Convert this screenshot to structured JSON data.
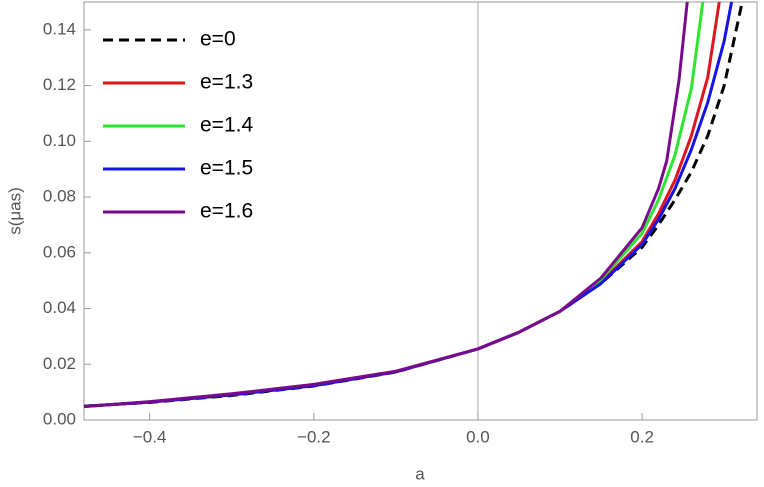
{
  "chart_data": {
    "type": "line",
    "x_label": "a",
    "y_label": "s(μas)",
    "xlim": [
      -0.48,
      0.34
    ],
    "ylim": [
      0,
      0.15
    ],
    "xticks": [
      {
        "value": -0.4,
        "label": "−0.4"
      },
      {
        "value": -0.2,
        "label": "−0.2"
      },
      {
        "value": 0,
        "label": "0.0"
      },
      {
        "value": 0.2,
        "label": "0.2"
      }
    ],
    "yticks": [
      {
        "value": 0,
        "label": "0.00"
      },
      {
        "value": 0.02,
        "label": "0.02"
      },
      {
        "value": 0.04,
        "label": "0.04"
      },
      {
        "value": 0.06,
        "label": "0.06"
      },
      {
        "value": 0.08,
        "label": "0.08"
      },
      {
        "value": 0.1,
        "label": "0.10"
      },
      {
        "value": 0.12,
        "label": "0.12"
      },
      {
        "value": 0.14,
        "label": "0.14"
      }
    ],
    "legend": "top-left",
    "series": [
      {
        "name": "e=0",
        "color": "#000000",
        "dashed": true,
        "x": [
          -0.48,
          -0.4,
          -0.3,
          -0.2,
          -0.1,
          0,
          0.05,
          0.1,
          0.15,
          0.2,
          0.22,
          0.24,
          0.26,
          0.28,
          0.3,
          0.322
        ],
        "values": [
          0.005,
          0.0063,
          0.0088,
          0.0122,
          0.0172,
          0.0255,
          0.0315,
          0.039,
          0.049,
          0.062,
          0.07,
          0.079,
          0.089,
          0.102,
          0.12,
          0.15
        ]
      },
      {
        "name": "e=1.3",
        "color": "#e0141e",
        "x": [
          -0.48,
          -0.4,
          -0.3,
          -0.2,
          -0.1,
          0,
          0.05,
          0.1,
          0.15,
          0.2,
          0.22,
          0.24,
          0.26,
          0.28,
          0.294
        ],
        "values": [
          0.0049,
          0.0064,
          0.009,
          0.0124,
          0.0173,
          0.0255,
          0.0315,
          0.039,
          0.0495,
          0.064,
          0.074,
          0.086,
          0.102,
          0.123,
          0.15
        ]
      },
      {
        "name": "e=1.4",
        "color": "#2ee62e",
        "x": [
          -0.48,
          -0.4,
          -0.3,
          -0.2,
          -0.1,
          0,
          0.05,
          0.1,
          0.15,
          0.2,
          0.22,
          0.24,
          0.26,
          0.274
        ],
        "values": [
          0.0049,
          0.0065,
          0.0091,
          0.0125,
          0.0174,
          0.0255,
          0.0315,
          0.039,
          0.0505,
          0.067,
          0.079,
          0.095,
          0.119,
          0.15
        ]
      },
      {
        "name": "e=1.5",
        "color": "#1414e6",
        "x": [
          -0.48,
          -0.4,
          -0.3,
          -0.2,
          -0.1,
          0,
          0.05,
          0.1,
          0.15,
          0.2,
          0.22,
          0.24,
          0.26,
          0.28,
          0.3,
          0.309
        ],
        "values": [
          0.0049,
          0.0064,
          0.009,
          0.0123,
          0.0173,
          0.0255,
          0.0315,
          0.039,
          0.049,
          0.063,
          0.072,
          0.083,
          0.097,
          0.114,
          0.136,
          0.15
        ]
      },
      {
        "name": "e=1.6",
        "color": "#7a0a8c",
        "x": [
          -0.48,
          -0.4,
          -0.3,
          -0.2,
          -0.1,
          0,
          0.05,
          0.1,
          0.15,
          0.2,
          0.22,
          0.23,
          0.245,
          0.255
        ],
        "values": [
          0.0048,
          0.0066,
          0.0094,
          0.0128,
          0.0175,
          0.0255,
          0.0315,
          0.039,
          0.051,
          0.069,
          0.083,
          0.093,
          0.122,
          0.15
        ]
      }
    ]
  }
}
